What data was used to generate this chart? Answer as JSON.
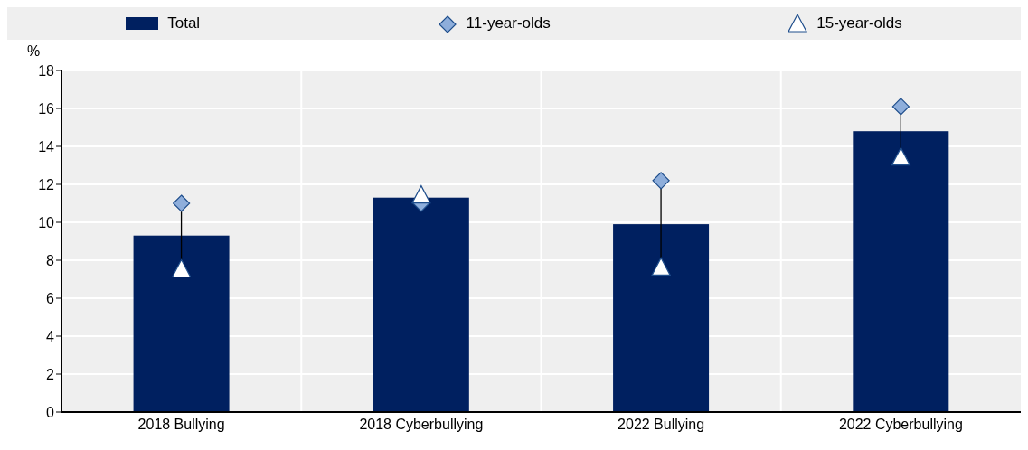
{
  "chart_data": {
    "type": "bar",
    "ylabel": "%",
    "categories": [
      "2018 Bullying",
      "2018 Cyberbullying",
      "2022 Bullying",
      "2022 Cyberbullying"
    ],
    "series": [
      {
        "name": "Total",
        "color": "#002060",
        "values": [
          9.3,
          11.3,
          9.9,
          14.8
        ]
      },
      {
        "name": "11-year-olds",
        "type": "scatter",
        "marker": "diamond",
        "color": "#8eaedb",
        "values": [
          11.0,
          11.0,
          12.2,
          16.1
        ]
      },
      {
        "name": "15-year-olds",
        "type": "scatter",
        "marker": "triangle",
        "color": "#ffffff",
        "values": [
          7.5,
          11.4,
          7.6,
          13.4
        ]
      }
    ],
    "ylim": [
      0,
      18
    ],
    "yticks": [
      0,
      2,
      4,
      6,
      8,
      10,
      12,
      14,
      16,
      18
    ],
    "grid": true,
    "legend": "top"
  }
}
